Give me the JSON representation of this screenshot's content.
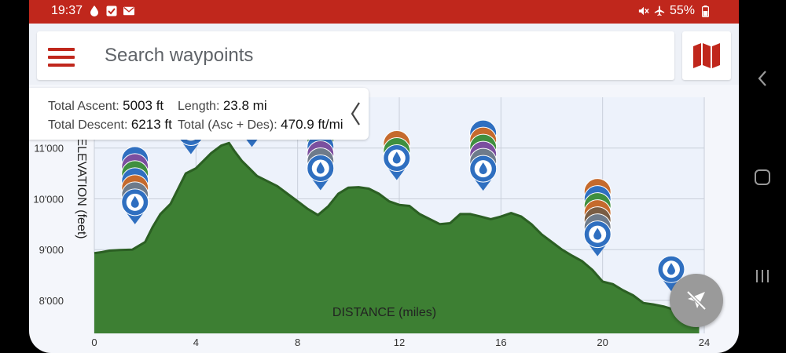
{
  "status_bar": {
    "time": "19:37",
    "battery": "55%",
    "icons_left": [
      "water-drop-icon",
      "checkbox-icon",
      "mail-icon"
    ],
    "icons_right": [
      "mute-icon",
      "airplane-icon",
      "battery-icon"
    ]
  },
  "search": {
    "placeholder": "Search waypoints"
  },
  "stats": {
    "total_ascent_label": "Total Ascent:",
    "total_ascent_value": "5003 ft",
    "length_label": "Length:",
    "length_value": "23.8 mi",
    "total_descent_label": "Total Descent:",
    "total_descent_value": "6213 ft",
    "total_asc_des_label": "Total (Asc + Des):",
    "total_asc_des_value": "470.9 ft/mi"
  },
  "colors": {
    "brand_red": "#c0271c",
    "profile_fill": "#3d7f33",
    "profile_stroke": "#2b5f23",
    "waypoint_blue": "#2f6fc0",
    "fab_gray": "#9a9a9a"
  },
  "chart_data": {
    "type": "area",
    "xlabel": "DISTANCE (miles)",
    "ylabel": "ELEVATION (feet)",
    "x_ticks": [
      "0",
      "4",
      "8",
      "12",
      "16",
      "20",
      "24"
    ],
    "y_ticks": [
      "8'000",
      "9'000",
      "10'000",
      "11'000"
    ],
    "xlim": [
      0,
      24
    ],
    "ylim": [
      7350,
      12000
    ],
    "grid": true,
    "series": [
      {
        "x": [
          0,
          0.3,
          0.6,
          1,
          1.5,
          2,
          2.3,
          2.6,
          3,
          3.3,
          3.6,
          4,
          4.3,
          4.6,
          5,
          5.3,
          5.5,
          5.8,
          6.1,
          6.4,
          6.8,
          7.2,
          7.6,
          8,
          8.4,
          8.8,
          9.2,
          9.6,
          10,
          10.4,
          10.8,
          11.2,
          11.6,
          12,
          12.4,
          12.8,
          13.2,
          13.6,
          14,
          14.4,
          14.8,
          15.2,
          15.6,
          16,
          16.4,
          16.8,
          17.2,
          17.6,
          18,
          18.4,
          18.8,
          19.2,
          19.6,
          20,
          20.4,
          20.8,
          21.2,
          21.6,
          22,
          22.4,
          22.8,
          23.2,
          23.8
        ],
        "y": [
          8930,
          8950,
          8980,
          8990,
          9000,
          9150,
          9450,
          9700,
          9900,
          10200,
          10500,
          10600,
          10750,
          10900,
          11050,
          11100,
          10950,
          10750,
          10600,
          10450,
          10350,
          10250,
          10100,
          9950,
          9800,
          9680,
          9850,
          10100,
          10220,
          10230,
          10200,
          10100,
          9950,
          9880,
          9860,
          9700,
          9600,
          9500,
          9520,
          9700,
          9700,
          9650,
          9600,
          9650,
          9720,
          9650,
          9500,
          9300,
          9150,
          9000,
          8880,
          8770,
          8600,
          8370,
          8320,
          8200,
          8100,
          7950,
          7920,
          7880,
          7820,
          7800,
          7780
        ]
      }
    ],
    "waypoints": [
      {
        "x": 1.6,
        "y": 9500,
        "stack": [
          "#6e7b8b",
          "#c56a2d",
          "#2f6fc0",
          "#3f8f3f",
          "#7b4f9f",
          "#2f6fc0"
        ]
      },
      {
        "x": 3.8,
        "y": 10880,
        "stack": [
          "#c56a2d",
          "#2f6fc0"
        ]
      },
      {
        "x": 6.2,
        "y": 11020,
        "stack": [
          "#c56a2d"
        ]
      },
      {
        "x": 8.9,
        "y": 10170,
        "stack": [
          "#6e7b8b",
          "#7b4f9f",
          "#2f6fc0",
          "#3f8f3f",
          "#c56a2d",
          "#2f6fc0"
        ]
      },
      {
        "x": 11.9,
        "y": 10370,
        "stack": [
          "#3f8f3f",
          "#c56a2d"
        ]
      },
      {
        "x": 15.3,
        "y": 10160,
        "stack": [
          "#6e7b8b",
          "#7b4f9f",
          "#3f8f3f",
          "#c56a2d",
          "#2f6fc0"
        ]
      },
      {
        "x": 19.8,
        "y": 8870,
        "stack": [
          "#6e7b8b",
          "#7a5d44",
          "#c56a2d",
          "#3f8f3f",
          "#2f6fc0",
          "#c56a2d"
        ]
      },
      {
        "x": 22.7,
        "y": 8180,
        "stack": []
      }
    ]
  }
}
